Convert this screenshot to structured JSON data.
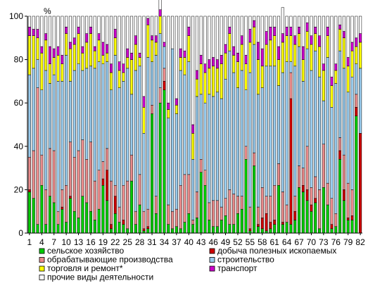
{
  "chart_data": {
    "type": "bar",
    "stacked": true,
    "unit_label": "%",
    "ylim": [
      0,
      100
    ],
    "y_ticks": [
      0,
      20,
      40,
      60,
      80,
      100
    ],
    "x_tick_labels": [
      "1",
      "4",
      "7",
      "10",
      "13",
      "16",
      "19",
      "22",
      "25",
      "28",
      "31",
      "34",
      "37",
      "40",
      "43",
      "46",
      "49",
      "52",
      "55",
      "58",
      "61",
      "64",
      "67",
      "70",
      "73",
      "76",
      "79",
      "82"
    ],
    "categories": [
      "1",
      "2",
      "3",
      "4",
      "5",
      "6",
      "7",
      "8",
      "9",
      "10",
      "11",
      "12",
      "13",
      "14",
      "15",
      "16",
      "17",
      "18",
      "19",
      "20",
      "21",
      "22",
      "23",
      "24",
      "25",
      "26",
      "27",
      "28",
      "29",
      "30",
      "31",
      "32",
      "33",
      "34",
      "35",
      "36",
      "37",
      "38",
      "39",
      "40",
      "41",
      "42",
      "43",
      "44",
      "45",
      "46",
      "47",
      "48",
      "49",
      "50",
      "51",
      "52",
      "53",
      "54",
      "55",
      "56",
      "57",
      "58",
      "59",
      "60",
      "61",
      "62",
      "63",
      "64",
      "65",
      "66",
      "67",
      "68",
      "69",
      "70",
      "71",
      "72",
      "73",
      "74",
      "75",
      "76",
      "77",
      "78",
      "79",
      "80",
      "81",
      "82"
    ],
    "series": [
      {
        "name": "сельское хозяйство",
        "color": "#00cc00",
        "values": [
          19,
          16,
          4,
          22,
          4,
          17,
          14,
          4,
          11,
          5,
          16,
          10,
          7,
          17,
          14,
          10,
          6,
          11,
          22,
          15,
          2,
          9,
          5,
          4,
          2,
          24,
          4,
          13,
          1,
          2,
          55,
          9,
          60,
          66,
          4,
          2,
          3,
          2,
          5,
          9,
          4,
          7,
          28,
          22,
          6,
          3,
          3,
          6,
          8,
          4,
          4,
          9,
          11,
          34,
          1,
          31,
          3,
          2,
          1,
          2,
          4,
          22,
          4,
          5,
          4,
          6,
          21,
          19,
          15,
          10,
          14,
          2,
          21,
          13,
          2,
          3,
          34,
          15,
          6,
          6,
          54,
          0
        ]
      },
      {
        "name": "добыча полезных ископаемых",
        "color": "#cc0000",
        "values": [
          1,
          0,
          0,
          0,
          0,
          0,
          0,
          0,
          1,
          0,
          1,
          0,
          0,
          0,
          0,
          0,
          0,
          0,
          3,
          14,
          2,
          8,
          0,
          2,
          0,
          0,
          0,
          0,
          1,
          1,
          0,
          0,
          0,
          4,
          0,
          0,
          0,
          0,
          0,
          0,
          0,
          0,
          0,
          0,
          0,
          0,
          0,
          0,
          0,
          0,
          0,
          0,
          0,
          0,
          1,
          0,
          1,
          5,
          8,
          3,
          2,
          0,
          1,
          0,
          58,
          4,
          0,
          3,
          5,
          3,
          2,
          0,
          0,
          0,
          2,
          0,
          4,
          5,
          1,
          2,
          4,
          46
        ]
      },
      {
        "name": "обрабатывающие производства",
        "color": "#ea8c8c",
        "values": [
          15,
          22,
          63,
          14,
          16,
          22,
          24,
          6,
          8,
          17,
          25,
          25,
          31,
          26,
          20,
          32,
          18,
          18,
          8,
          10,
          20,
          5,
          7,
          16,
          22,
          12,
          6,
          14,
          8,
          8,
          4,
          8,
          7,
          6,
          9,
          8,
          8,
          20,
          22,
          18,
          2,
          12,
          6,
          7,
          8,
          12,
          12,
          6,
          8,
          16,
          14,
          8,
          6,
          6,
          10,
          6,
          8,
          14,
          8,
          12,
          16,
          10,
          14,
          8,
          12,
          7,
          10,
          8,
          20,
          8,
          10,
          18,
          20,
          10,
          12,
          6,
          6,
          16,
          16,
          12,
          6,
          0
        ]
      },
      {
        "name": "строительство",
        "color": "#99ccee",
        "values": [
          38,
          38,
          13,
          30,
          55,
          30,
          35,
          60,
          50,
          60,
          28,
          40,
          40,
          32,
          42,
          35,
          52,
          50,
          45,
          40,
          42,
          60,
          55,
          48,
          52,
          28,
          65,
          50,
          36,
          70,
          20,
          65,
          25,
          10,
          40,
          75,
          44,
          53,
          46,
          52,
          28,
          44,
          30,
          31,
          50,
          48,
          50,
          50,
          55,
          64,
          56,
          50,
          58,
          26,
          62,
          50,
          52,
          46,
          60,
          60,
          55,
          36,
          55,
          66,
          5,
          60,
          55,
          40,
          45,
          54,
          58,
          52,
          20,
          58,
          42,
          60,
          40,
          40,
          42,
          52,
          14,
          30
        ]
      },
      {
        "name": "торговля и ремонт*",
        "color": "#ffff00",
        "values": [
          18,
          15,
          10,
          17,
          14,
          9,
          8,
          12,
          8,
          10,
          15,
          12,
          14,
          8,
          12,
          15,
          8,
          10,
          4,
          4,
          8,
          8,
          8,
          4,
          5,
          16,
          12,
          4,
          12,
          15,
          10,
          6,
          8,
          0,
          4,
          0,
          4,
          6,
          8,
          12,
          12,
          8,
          14,
          14,
          12,
          14,
          11,
          16,
          12,
          8,
          8,
          12,
          12,
          12,
          14,
          8,
          16,
          10,
          10,
          12,
          14,
          12,
          14,
          12,
          12,
          10,
          6,
          10,
          8,
          12,
          8,
          14,
          14,
          10,
          10,
          6,
          10,
          14,
          12,
          12,
          8,
          12
        ]
      },
      {
        "name": "транспорт",
        "color": "#cc00cc",
        "values": [
          4,
          3,
          4,
          3,
          3,
          8,
          4,
          4,
          4,
          3,
          3,
          3,
          3,
          3,
          4,
          3,
          2,
          3,
          6,
          4,
          4,
          4,
          4,
          4,
          4,
          3,
          4,
          2,
          5,
          3,
          2,
          3,
          3,
          2,
          3,
          0,
          3,
          4,
          3,
          4,
          4,
          4,
          4,
          4,
          4,
          4,
          4,
          4,
          4,
          3,
          4,
          4,
          4,
          4,
          6,
          3,
          8,
          8,
          6,
          6,
          4,
          6,
          4,
          4,
          4,
          4,
          3,
          6,
          4,
          4,
          3,
          5,
          3,
          4,
          4,
          3,
          2,
          3,
          4,
          4,
          4,
          4
        ]
      },
      {
        "name": "прочие виды деятельности",
        "color": "#ffffff",
        "values": [
          5,
          6,
          6,
          14,
          8,
          14,
          15,
          14,
          18,
          5,
          12,
          10,
          5,
          14,
          8,
          5,
          14,
          8,
          12,
          13,
          22,
          6,
          21,
          22,
          15,
          17,
          9,
          17,
          37,
          1,
          9,
          9,
          7,
          12,
          40,
          15,
          38,
          15,
          16,
          5,
          50,
          25,
          18,
          22,
          20,
          19,
          20,
          18,
          13,
          5,
          14,
          17,
          9,
          18,
          6,
          2,
          12,
          15,
          7,
          5,
          5,
          14,
          12,
          5,
          5,
          9,
          5,
          14,
          3,
          9,
          5,
          9,
          22,
          5,
          28,
          22,
          4,
          7,
          19,
          12,
          10,
          8
        ]
      }
    ]
  }
}
